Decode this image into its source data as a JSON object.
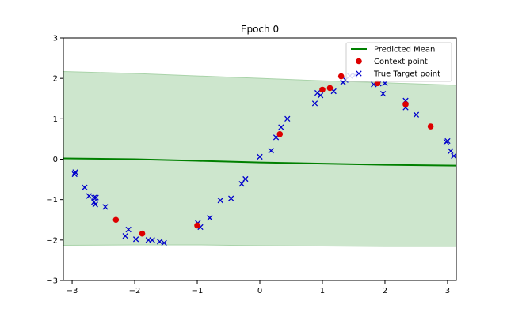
{
  "chart_data": {
    "type": "scatter",
    "title": "Epoch 0",
    "xlabel": "",
    "ylabel": "",
    "xlim": [
      -3.14,
      3.14
    ],
    "ylim": [
      -3,
      3
    ],
    "x_ticks": [
      -3,
      -2,
      -1,
      0,
      1,
      2,
      3
    ],
    "y_ticks": [
      -3,
      -2,
      -1,
      0,
      1,
      2,
      3
    ],
    "x_tick_labels": [
      "−3",
      "−2",
      "−1",
      "0",
      "1",
      "2",
      "3"
    ],
    "y_tick_labels": [
      "−3",
      "−2",
      "−1",
      "0",
      "1",
      "2",
      "3"
    ],
    "grid": false,
    "legend_position": "top-right",
    "colors": {
      "predicted_mean": "#008000",
      "band_fill": "#cde6cd",
      "band_edge": "#a9d3a9",
      "context_point": "#dd0000",
      "target_point": "#0000cc"
    },
    "series": [
      {
        "name": "Predicted Mean",
        "kind": "line",
        "x": [
          -3.14,
          -2.0,
          -1.0,
          0.0,
          1.0,
          2.0,
          3.14
        ],
        "y": [
          0.02,
          0.0,
          -0.04,
          -0.08,
          -0.11,
          -0.14,
          -0.16
        ]
      },
      {
        "name": "Uncertainty Band",
        "kind": "band",
        "x": [
          -3.14,
          -2.0,
          -1.0,
          0.0,
          1.0,
          2.0,
          3.14
        ],
        "y_upper": [
          2.17,
          2.12,
          2.06,
          2.0,
          1.94,
          1.89,
          1.83
        ],
        "y_lower": [
          -2.13,
          -2.12,
          -2.12,
          -2.14,
          -2.15,
          -2.16,
          -2.16
        ]
      },
      {
        "name": "Context point",
        "kind": "scatter",
        "points": [
          [
            -2.3,
            -1.5
          ],
          [
            -1.88,
            -1.84
          ],
          [
            -1.0,
            -1.64
          ],
          [
            0.32,
            0.62
          ],
          [
            1.0,
            1.72
          ],
          [
            1.12,
            1.76
          ],
          [
            1.3,
            2.05
          ],
          [
            1.88,
            1.88
          ],
          [
            2.33,
            1.36
          ],
          [
            2.73,
            0.81
          ]
        ]
      },
      {
        "name": "True Target point",
        "kind": "scatter",
        "points": [
          [
            -2.95,
            -0.32
          ],
          [
            -2.96,
            -0.37
          ],
          [
            -2.8,
            -0.7
          ],
          [
            -2.73,
            -0.91
          ],
          [
            -2.65,
            -0.95
          ],
          [
            -2.62,
            -0.95
          ],
          [
            -2.65,
            -1.06
          ],
          [
            -2.63,
            -1.12
          ],
          [
            -2.47,
            -1.18
          ],
          [
            -2.1,
            -1.74
          ],
          [
            -2.15,
            -1.9
          ],
          [
            -1.98,
            -1.98
          ],
          [
            -1.78,
            -2.0
          ],
          [
            -1.72,
            -2.0
          ],
          [
            -1.6,
            -2.04
          ],
          [
            -1.53,
            -2.07
          ],
          [
            -0.99,
            -1.58
          ],
          [
            -0.95,
            -1.68
          ],
          [
            -0.8,
            -1.45
          ],
          [
            -0.63,
            -1.02
          ],
          [
            -0.46,
            -0.97
          ],
          [
            -0.29,
            -0.61
          ],
          [
            -0.23,
            -0.49
          ],
          [
            0.0,
            0.06
          ],
          [
            0.18,
            0.21
          ],
          [
            0.26,
            0.54
          ],
          [
            0.34,
            0.79
          ],
          [
            0.44,
            1.0
          ],
          [
            0.88,
            1.38
          ],
          [
            0.92,
            1.64
          ],
          [
            0.97,
            1.58
          ],
          [
            1.18,
            1.68
          ],
          [
            1.33,
            1.9
          ],
          [
            1.37,
            1.96
          ],
          [
            1.44,
            2.06
          ],
          [
            1.52,
            2.08
          ],
          [
            1.82,
            1.85
          ],
          [
            1.9,
            1.87
          ],
          [
            1.97,
            1.62
          ],
          [
            2.0,
            1.88
          ],
          [
            2.33,
            1.28
          ],
          [
            2.33,
            1.45
          ],
          [
            2.5,
            1.1
          ],
          [
            2.98,
            0.43
          ],
          [
            3.0,
            0.45
          ],
          [
            3.05,
            0.2
          ],
          [
            3.1,
            0.08
          ]
        ]
      }
    ]
  }
}
